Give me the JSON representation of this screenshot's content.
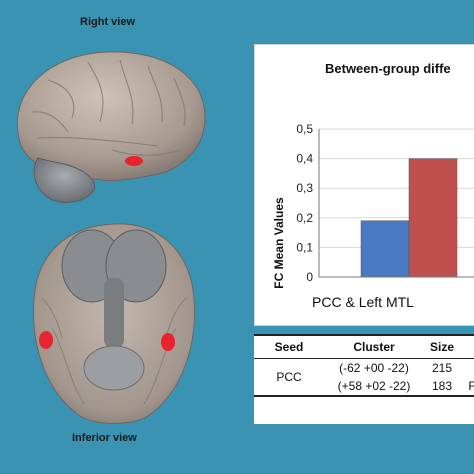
{
  "views": {
    "right_label": "Right view",
    "inferior_label": "Inferior view"
  },
  "chart_data": {
    "type": "bar",
    "title": "Between-group diffe",
    "ylabel": "FC Mean Values",
    "xlabel": "",
    "categories": [
      "PCC & Left MTL"
    ],
    "ylim": [
      0,
      0.5
    ],
    "yticks": [
      "0",
      "0,1",
      "0,2",
      "0,3",
      "0,4",
      "0,5"
    ],
    "series": [
      {
        "values": [
          0.19
        ],
        "color": "#4a79c4"
      },
      {
        "values": [
          0.4
        ],
        "color": "#c0504d"
      }
    ]
  },
  "table": {
    "headers": [
      "Seed",
      "Cluster",
      "Size",
      ""
    ],
    "rows": [
      {
        "seed": "PCC",
        "cluster": "(-62 +00 -22)",
        "size": "215",
        "extra": ""
      },
      {
        "seed": "",
        "cluster": "(+58 +02 -22)",
        "size": "183",
        "extra": "F"
      }
    ]
  },
  "colors": {
    "background": "#3b93b4",
    "highlight": "#e8222e"
  }
}
